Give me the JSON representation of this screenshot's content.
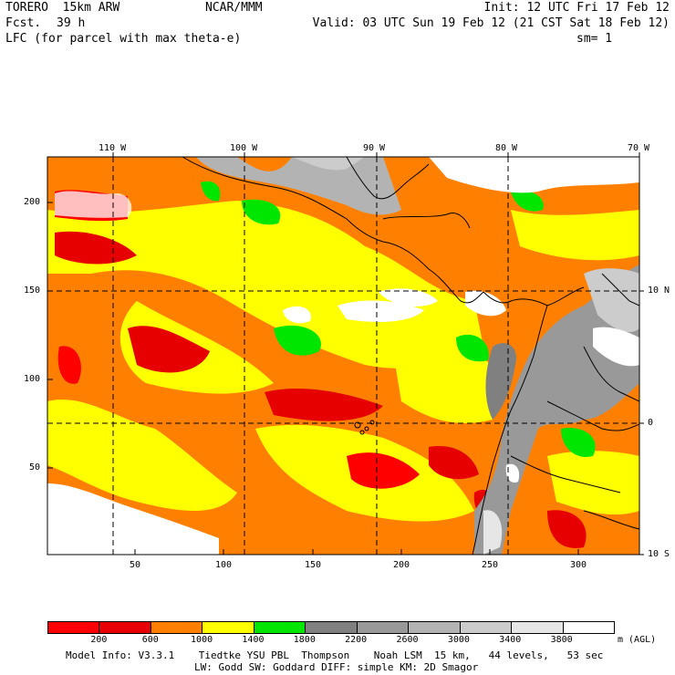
{
  "header": {
    "model": "TORERO  15km ARW",
    "org": "NCAR/MMM",
    "init": "Init: 12 UTC Fri 17 Feb 12",
    "fcst_label": "Fcst.",
    "fcst_value": "39 h",
    "valid": "Valid: 03 UTC Sun 19 Feb 12 (21 CST Sat 18 Feb 12)",
    "field": "LFC (for parcel with max theta-e)",
    "smoothing": "sm= 1"
  },
  "map": {
    "lon_labels": [
      "110 W",
      "100 W",
      "90 W",
      "80 W",
      "70 W"
    ],
    "lat_labels": [
      "10 N",
      "0",
      "10 S"
    ],
    "y_ticks": [
      "200",
      "150",
      "100",
      "50"
    ],
    "x_ticks": [
      "50",
      "100",
      "150",
      "200",
      "250",
      "300"
    ]
  },
  "legend": {
    "colors": [
      "#ff0000",
      "#e60000",
      "#ff8000",
      "#ffff00",
      "#00e600",
      "#808080",
      "#999999",
      "#b3b3b3",
      "#cccccc",
      "#e6e6e6",
      "#ffffff"
    ],
    "labels": [
      "200",
      "600",
      "1000",
      "1400",
      "1800",
      "2200",
      "2600",
      "3000",
      "3400",
      "3800"
    ],
    "unit": "m (AGL)"
  },
  "footer": {
    "line1": "Model Info: V3.3.1    Tiedtke YSU PBL  Thompson    Noah LSM  15 km,   44 levels,   53 sec",
    "line2": "LW: Godd SW: Goddard DIFF: simple KM: 2D Smagor"
  }
}
